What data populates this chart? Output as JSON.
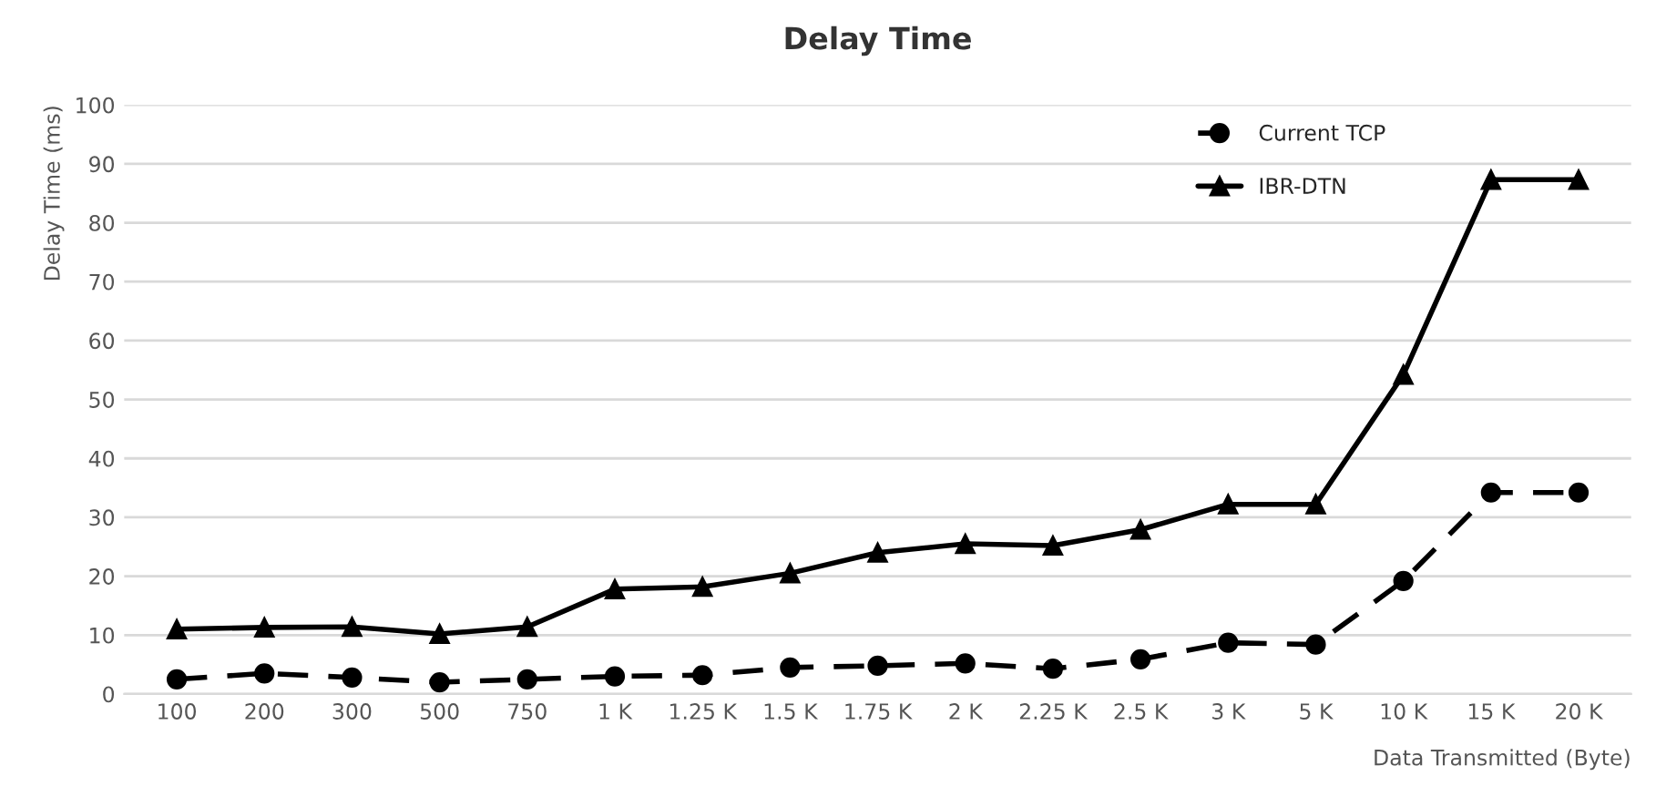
{
  "chart_data": {
    "type": "line",
    "title": "Delay Time",
    "xlabel": "Data Transmitted (Byte)",
    "ylabel": "Delay Time (ms)",
    "categories": [
      "100",
      "200",
      "300",
      "500",
      "750",
      "1 K",
      "1.25 K",
      "1.5 K",
      "1.75 K",
      "2 K",
      "2.25 K",
      "2.5 K",
      "3 K",
      "5 K",
      "10 K",
      "15 K",
      "20 K"
    ],
    "series": [
      {
        "name": "Current TCP",
        "color": "#000000",
        "marker": "circle",
        "line_style": "dashed",
        "values": [
          2.5,
          3.5,
          2.8,
          2.0,
          2.5,
          3.0,
          3.2,
          4.5,
          4.8,
          5.2,
          4.3,
          5.9,
          8.7,
          8.4,
          19.2,
          34.2,
          34.2
        ]
      },
      {
        "name": "IBR-DTN",
        "color": "#000000",
        "marker": "triangle",
        "line_style": "solid",
        "values": [
          11.0,
          11.3,
          11.4,
          10.2,
          11.4,
          17.8,
          18.2,
          20.5,
          24.0,
          25.5,
          25.2,
          27.9,
          32.2,
          32.2,
          54.2,
          87.3,
          87.3
        ]
      }
    ],
    "ylim": [
      0,
      100
    ],
    "yticks": [
      0,
      10,
      20,
      30,
      40,
      50,
      60,
      70,
      80,
      90,
      100
    ],
    "grid": "y",
    "legend": "top right"
  }
}
